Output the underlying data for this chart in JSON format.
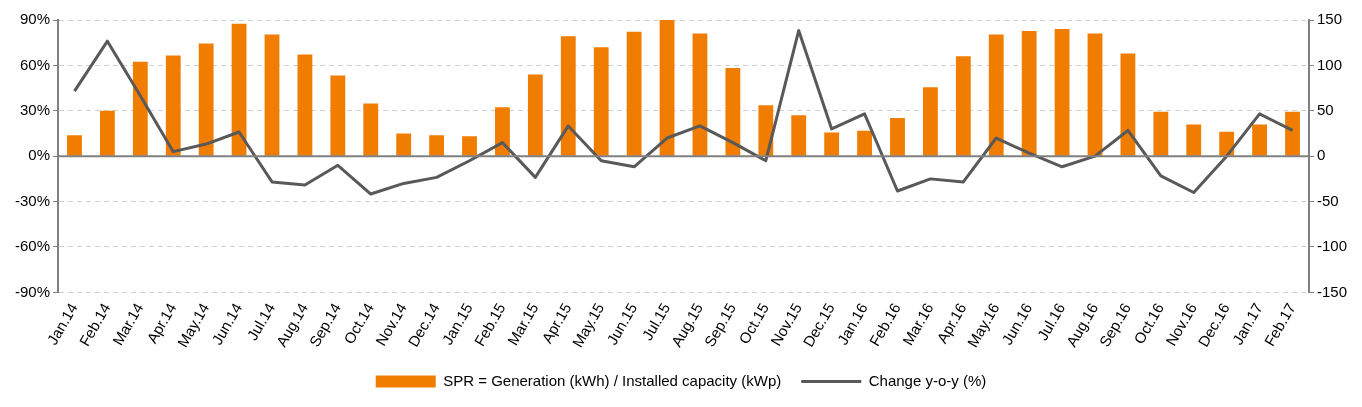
{
  "chart_data": {
    "type": "bar",
    "categories": [
      "Jan.14",
      "Feb.14",
      "Mar.14",
      "Apr.14",
      "May.14",
      "Jun.14",
      "Jul.14",
      "Aug.14",
      "Sep.14",
      "Oct.14",
      "Nov.14",
      "Dec.14",
      "Jan.15",
      "Feb.15",
      "Mar.15",
      "Apr.15",
      "May.15",
      "Jun.15",
      "Jul.15",
      "Aug.15",
      "Sep.15",
      "Oct.15",
      "Nov.15",
      "Dec.15",
      "Jan.16",
      "Feb.16",
      "Mar.16",
      "Apr.16",
      "May.16",
      "Jun.16",
      "Jul.16",
      "Aug.16",
      "Sep.16",
      "Oct.16",
      "Nov.16",
      "Dec.16",
      "Jan.17",
      "Feb.17"
    ],
    "series": [
      {
        "name": "SPR = Generation (kWh) / Installed capacity (kWp)",
        "axis": "y2",
        "color": "#f07c00",
        "values": [
          23,
          50,
          104,
          111,
          124,
          146,
          134,
          112,
          89,
          58,
          25,
          23,
          22,
          54,
          90,
          132,
          120,
          137,
          150,
          135,
          97,
          56,
          45,
          26,
          28,
          42,
          76,
          110,
          134,
          138,
          140,
          135,
          113,
          49,
          35,
          27,
          35,
          49
        ]
      },
      {
        "name": "Change y-o-y (%)",
        "type": "line",
        "axis": "y",
        "color": "#595959",
        "values": [
          43,
          76,
          40,
          3,
          8,
          16,
          -17,
          -19,
          -6,
          -25,
          -18,
          -14,
          -3,
          9,
          -14,
          20,
          -3,
          -7,
          12,
          20,
          9,
          -3,
          83,
          18,
          28,
          -23,
          -15,
          -17,
          12,
          2,
          -7,
          0,
          17,
          -13,
          -24,
          0,
          28,
          17
        ]
      }
    ],
    "ylim": [
      -90,
      90
    ],
    "yticks": [
      {
        "value": -90,
        "label": "-90%"
      },
      {
        "value": -60,
        "label": "-60%"
      },
      {
        "value": -30,
        "label": "-30%"
      },
      {
        "value": 0,
        "label": "0%"
      },
      {
        "value": 30,
        "label": "30%"
      },
      {
        "value": 60,
        "label": "60%"
      },
      {
        "value": 90,
        "label": "90%"
      }
    ],
    "y2lim": [
      -150,
      150
    ],
    "y2ticks": [
      -150,
      -100,
      -50,
      0,
      50,
      100,
      150
    ],
    "grid": "y",
    "legend": "bottom",
    "marker": "none",
    "line_style": "solid"
  }
}
